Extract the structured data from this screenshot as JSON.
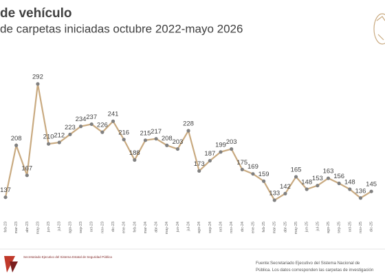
{
  "chart_data": {
    "type": "line",
    "title": "de vehículo",
    "subtitle": "de carpetas iniciadas octubre 2022-mayo 2026",
    "categories": [
      "feb-23",
      "mar-23",
      "abr-23",
      "may-23",
      "jun-23",
      "jul-23",
      "ago-23",
      "sep-23",
      "oct-23",
      "nov-23",
      "dic-23",
      "ene-24",
      "feb-24",
      "mar-24",
      "abr-24",
      "may-24",
      "jun-24",
      "jul-24",
      "ago-24",
      "sep-24",
      "oct-24",
      "nov-24",
      "dic-24",
      "ene-25",
      "feb-25",
      "mar-25",
      "abr-25",
      "may-25",
      "jun-25",
      "jul-25",
      "ago-25",
      "sep-25",
      "oct-25",
      "nov-25",
      "dic-25"
    ],
    "series": [
      {
        "name": "Carpetas",
        "color": "#c9aa80",
        "marker_color": "#808080",
        "values": [
          137,
          208,
          167,
          292,
          210,
          212,
          223,
          234,
          237,
          226,
          241,
          216,
          188,
          215,
          217,
          208,
          203,
          228,
          173,
          187,
          199,
          203,
          175,
          169,
          159,
          133,
          142,
          165,
          148,
          153,
          163,
          156,
          148,
          136,
          145
        ]
      }
    ],
    "ylim": [
      100,
      300
    ],
    "grid": false
  },
  "footer": {
    "logo_text": "Secretariado Ejecutivo del Sistema Estatal de Seguridad Pública",
    "source_line1": "Fuente:Secretariado Ejecutivo del Sistema Nacional de",
    "source_line2": "Pública. Los datos corresponden las carpetas de investigación"
  }
}
